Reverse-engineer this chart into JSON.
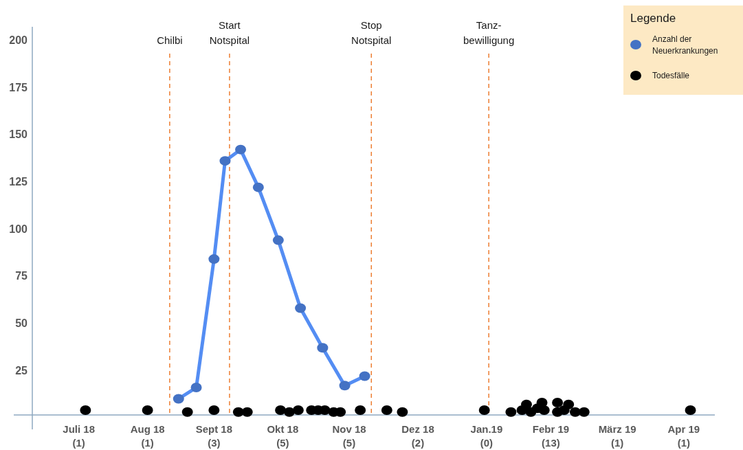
{
  "chart_data": {
    "type": "line",
    "xlim": [
      "2018-06-25",
      "2019-04-29"
    ],
    "ylim": [
      0,
      207
    ],
    "xticks": [
      {
        "value": "2018-07-16",
        "label": "Juli 18\n(1)"
      },
      {
        "value": "2018-08-16",
        "label": "Aug 18\n(1)"
      },
      {
        "value": "2018-09-15",
        "label": "Sept 18\n(3)"
      },
      {
        "value": "2018-10-16",
        "label": "Okt 18\n(5)"
      },
      {
        "value": "2018-11-15",
        "label": "Nov 18\n(5)"
      },
      {
        "value": "2018-12-16",
        "label": "Dez 18\n(2)"
      },
      {
        "value": "2019-01-16",
        "label": "Jan.19\n(0)"
      },
      {
        "value": "2019-02-14",
        "label": "Febr 19\n(13)"
      },
      {
        "value": "2019-03-16",
        "label": "März 19\n(1)"
      },
      {
        "value": "2019-04-15",
        "label": "Apr 19\n(1)"
      }
    ],
    "yticks": [
      25,
      50,
      75,
      100,
      125,
      150,
      175,
      200
    ],
    "grid": false,
    "legend": "top right",
    "legend_title": "Legende",
    "marker": "circle",
    "line_style": "solid",
    "series": [
      {
        "name": "Anzahl der Neuerkrankungen",
        "color": "#4472c4",
        "x": [
          "2018-08-30",
          "2018-09-07",
          "2018-09-15",
          "2018-09-20",
          "2018-09-27",
          "2018-10-05",
          "2018-10-14",
          "2018-10-24",
          "2018-11-03",
          "2018-11-13",
          "2018-11-22"
        ],
        "values": [
          10,
          16,
          84,
          136,
          142,
          122,
          94,
          58,
          37,
          17,
          22
        ]
      },
      {
        "name": "Todesfälle",
        "type": "scatter",
        "color": "#000000",
        "x": [
          "2018-07-19",
          "2018-08-16",
          "2018-09-03",
          "2018-09-15",
          "2018-09-26",
          "2018-09-30",
          "2018-10-15",
          "2018-10-19",
          "2018-10-23",
          "2018-10-29",
          "2018-11-01",
          "2018-11-04",
          "2018-11-08",
          "2018-11-11",
          "2018-11-20",
          "2018-12-02",
          "2018-12-09",
          "2019-01-15",
          "2019-01-27",
          "2019-02-01",
          "2019-02-03",
          "2019-02-05",
          "2019-02-08",
          "2019-02-10",
          "2019-02-11",
          "2019-02-17",
          "2019-02-17",
          "2019-02-20",
          "2019-02-22",
          "2019-02-25",
          "2019-03-01",
          "2019-04-18"
        ],
        "values": [
          4,
          4,
          3,
          4,
          3,
          3,
          4,
          3,
          4,
          4,
          4,
          4,
          3,
          3,
          4,
          4,
          3,
          4,
          3,
          4,
          7,
          3,
          5,
          8,
          4,
          8,
          3,
          4,
          7,
          3,
          3,
          4
        ]
      }
    ],
    "ref_lines": [
      {
        "axis": "x",
        "value": "2018-08-26",
        "label": "Chilbi",
        "color": "#ed7d31",
        "line_style": "dashed"
      },
      {
        "axis": "x",
        "value": "2018-09-22",
        "label": "Start\nNotspital",
        "color": "#ed7d31",
        "line_style": "dashed"
      },
      {
        "axis": "x",
        "value": "2018-11-25",
        "label": "Stop\nNotspital",
        "color": "#ed7d31",
        "line_style": "dashed"
      },
      {
        "axis": "x",
        "value": "2019-01-17",
        "label": "Tanz-\nbewilligung",
        "color": "#ed7d31",
        "line_style": "dashed"
      }
    ]
  }
}
